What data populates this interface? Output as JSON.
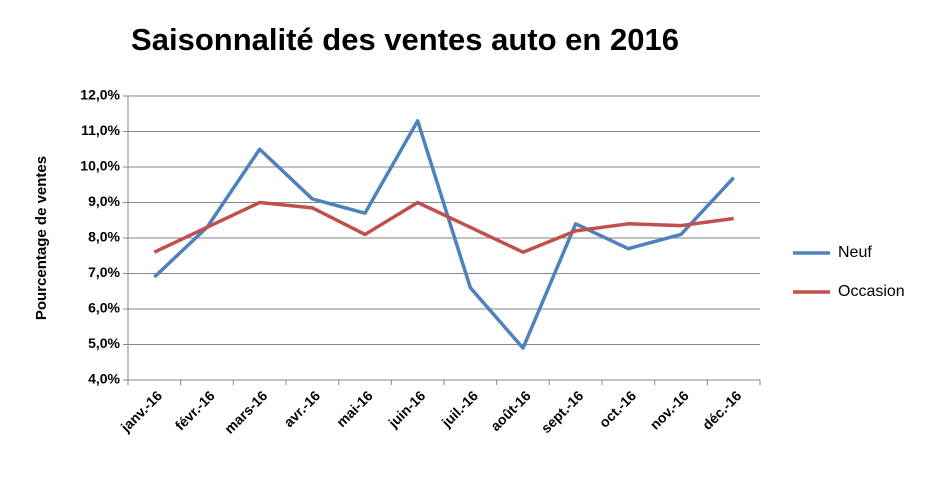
{
  "chart_data": {
    "type": "line",
    "title": "Saisonnalité des ventes auto en 2016",
    "y_label": "Pourcentage de ventes",
    "categories": [
      "janv.-16",
      "févr.-16",
      "mars-16",
      "avr.-16",
      "mai-16",
      "juin-16",
      "juil.-16",
      "août-16",
      "sept.-16",
      "oct.-16",
      "nov.-16",
      "déc.-16"
    ],
    "series": [
      {
        "name": "Neuf",
        "color": "#4f81bd",
        "values": [
          6.9,
          8.3,
          10.5,
          9.1,
          8.7,
          11.3,
          6.6,
          4.9,
          8.4,
          7.7,
          8.1,
          9.7
        ]
      },
      {
        "name": "Occasion",
        "color": "#c0504d",
        "values": [
          7.6,
          8.3,
          9.0,
          8.85,
          8.1,
          9.0,
          8.3,
          7.6,
          8.2,
          8.4,
          8.35,
          8.55
        ]
      }
    ],
    "ylim": [
      4,
      12
    ],
    "yticks": [
      {
        "value": 4,
        "label": "4,0%"
      },
      {
        "value": 5,
        "label": "5,0%"
      },
      {
        "value": 6,
        "label": "6,0%"
      },
      {
        "value": 7,
        "label": "7,0%"
      },
      {
        "value": 8,
        "label": "8,0%"
      },
      {
        "value": 9,
        "label": "9,0%"
      },
      {
        "value": 10,
        "label": "10,0%"
      },
      {
        "value": 11,
        "label": "11,0%"
      },
      {
        "value": 12,
        "label": "12,0%"
      }
    ],
    "grid": true,
    "legend": "right"
  }
}
